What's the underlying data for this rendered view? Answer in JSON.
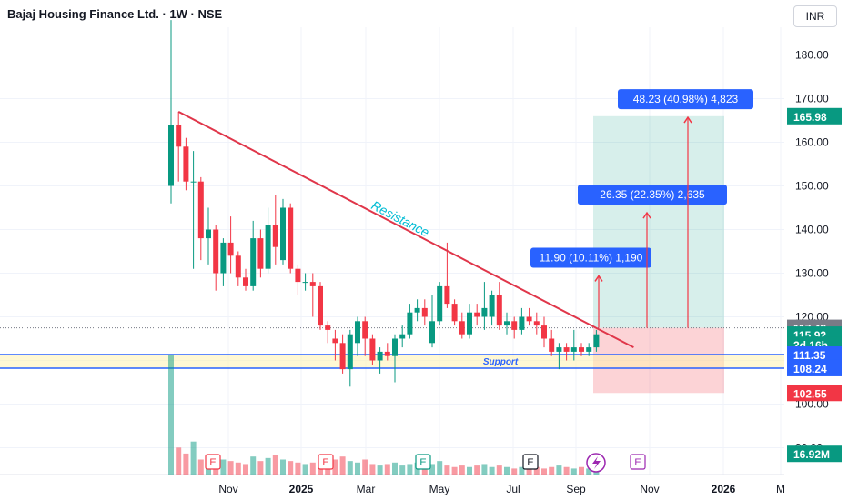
{
  "header": {
    "title": "Bajaj Housing Finance Ltd. · 1W · NSE",
    "currency": "INR"
  },
  "chart_data": {
    "type": "candlestick",
    "y_axis": {
      "ticks": [
        90,
        100,
        110,
        120,
        130,
        140,
        150,
        160,
        170,
        180
      ],
      "labels": [
        "90.00",
        "100.00",
        "",
        "120.00",
        "130.00",
        "140.00",
        "150.00",
        "160.00",
        "170.00",
        "180.00"
      ]
    },
    "x_axis": {
      "labels": [
        "Nov",
        "2025",
        "Mar",
        "May",
        "Jul",
        "Sep",
        "Nov",
        "2026",
        "M"
      ]
    },
    "candles": [
      {
        "o": 150,
        "h": 188,
        "l": 146,
        "c": 164
      },
      {
        "o": 164,
        "h": 167,
        "l": 151,
        "c": 159
      },
      {
        "o": 159,
        "h": 161,
        "l": 149,
        "c": 151
      },
      {
        "o": 151,
        "h": 158,
        "l": 131,
        "c": 151
      },
      {
        "o": 151,
        "h": 152,
        "l": 133,
        "c": 138
      },
      {
        "o": 138,
        "h": 145,
        "l": 132,
        "c": 140
      },
      {
        "o": 140,
        "h": 141,
        "l": 126,
        "c": 130
      },
      {
        "o": 130,
        "h": 138,
        "l": 127,
        "c": 137
      },
      {
        "o": 137,
        "h": 143,
        "l": 130,
        "c": 134
      },
      {
        "o": 134,
        "h": 135,
        "l": 127,
        "c": 129
      },
      {
        "o": 129,
        "h": 131,
        "l": 126,
        "c": 127
      },
      {
        "o": 127,
        "h": 142,
        "l": 126,
        "c": 138
      },
      {
        "o": 138,
        "h": 140,
        "l": 129,
        "c": 131
      },
      {
        "o": 131,
        "h": 145,
        "l": 130,
        "c": 141
      },
      {
        "o": 141,
        "h": 148,
        "l": 132,
        "c": 136
      },
      {
        "o": 133,
        "h": 147,
        "l": 132,
        "c": 145
      },
      {
        "o": 145,
        "h": 146,
        "l": 130,
        "c": 131
      },
      {
        "o": 131,
        "h": 132,
        "l": 125,
        "c": 128
      },
      {
        "o": 128,
        "h": 130,
        "l": 126,
        "c": 128
      },
      {
        "o": 128,
        "h": 130,
        "l": 120,
        "c": 127
      },
      {
        "o": 127,
        "h": 128,
        "l": 117,
        "c": 118
      },
      {
        "o": 118,
        "h": 119,
        "l": 114,
        "c": 117
      },
      {
        "o": 115,
        "h": 117,
        "l": 110,
        "c": 114
      },
      {
        "o": 114,
        "h": 116,
        "l": 107,
        "c": 108
      },
      {
        "o": 108,
        "h": 117,
        "l": 104,
        "c": 116
      },
      {
        "o": 114,
        "h": 120,
        "l": 111,
        "c": 119
      },
      {
        "o": 119,
        "h": 120,
        "l": 111,
        "c": 115
      },
      {
        "o": 115,
        "h": 116,
        "l": 109,
        "c": 110
      },
      {
        "o": 110,
        "h": 113,
        "l": 107,
        "c": 112
      },
      {
        "o": 112,
        "h": 114,
        "l": 110,
        "c": 111
      },
      {
        "o": 111,
        "h": 116,
        "l": 105,
        "c": 115
      },
      {
        "o": 115,
        "h": 118,
        "l": 113,
        "c": 116
      },
      {
        "o": 116,
        "h": 123,
        "l": 115,
        "c": 121
      },
      {
        "o": 121,
        "h": 124,
        "l": 119,
        "c": 122
      },
      {
        "o": 122,
        "h": 124,
        "l": 118,
        "c": 120
      },
      {
        "o": 114,
        "h": 125,
        "l": 113,
        "c": 119
      },
      {
        "o": 119,
        "h": 128,
        "l": 118,
        "c": 127
      },
      {
        "o": 127,
        "h": 137,
        "l": 122,
        "c": 123
      },
      {
        "o": 123,
        "h": 124,
        "l": 118,
        "c": 119
      },
      {
        "o": 119,
        "h": 121,
        "l": 115,
        "c": 116
      },
      {
        "o": 116,
        "h": 123,
        "l": 115,
        "c": 121
      },
      {
        "o": 121,
        "h": 123,
        "l": 118,
        "c": 120
      },
      {
        "o": 120,
        "h": 128,
        "l": 117,
        "c": 122
      },
      {
        "o": 120,
        "h": 126,
        "l": 118,
        "c": 125
      },
      {
        "o": 125,
        "h": 128,
        "l": 117,
        "c": 118
      },
      {
        "o": 118,
        "h": 121,
        "l": 116,
        "c": 119
      },
      {
        "o": 119,
        "h": 120,
        "l": 115,
        "c": 117
      },
      {
        "o": 117,
        "h": 122,
        "l": 116,
        "c": 120
      },
      {
        "o": 120,
        "h": 122,
        "l": 118,
        "c": 119
      },
      {
        "o": 119,
        "h": 121,
        "l": 116,
        "c": 118
      },
      {
        "o": 118,
        "h": 120,
        "l": 113,
        "c": 115
      },
      {
        "o": 115,
        "h": 117,
        "l": 111,
        "c": 112
      },
      {
        "o": 112,
        "h": 114,
        "l": 108,
        "c": 113
      },
      {
        "o": 113,
        "h": 114,
        "l": 110,
        "c": 112
      },
      {
        "o": 112,
        "h": 117,
        "l": 110,
        "c": 113
      },
      {
        "o": 113,
        "h": 114,
        "l": 111,
        "c": 112
      },
      {
        "o": 112,
        "h": 114,
        "l": 111,
        "c": 113
      },
      {
        "o": 113,
        "h": 117,
        "l": 112,
        "c": 116
      }
    ],
    "volume": [
      80,
      18,
      14,
      22,
      10,
      12,
      8,
      10,
      9,
      8,
      7,
      12,
      9,
      11,
      13,
      10,
      9,
      8,
      7,
      8,
      9,
      11,
      10,
      12,
      9,
      8,
      10,
      7,
      6,
      7,
      8,
      6,
      7,
      8,
      6,
      7,
      9,
      6,
      5,
      6,
      5,
      6,
      7,
      5,
      6,
      5,
      4,
      5,
      4,
      5,
      4,
      5,
      6,
      5,
      4,
      5,
      4,
      6
    ],
    "resistance": {
      "label": "Resistance",
      "from": [
        1,
        167
      ],
      "to": [
        62,
        113
      ]
    },
    "support": {
      "label": "Support",
      "upper": 111.35,
      "lower": 108.24
    },
    "position": {
      "entry": 117.48,
      "target": 165.98,
      "stop": 102.55
    },
    "targets": [
      {
        "price": 129.38,
        "label": "11.90 (10.11%) 1,190"
      },
      {
        "price": 143.83,
        "label": "26.35 (22.35%) 2,635"
      },
      {
        "price": 165.71,
        "label": "48.23 (40.98%) 4,823"
      }
    ],
    "price_tags": [
      {
        "label": "165.98",
        "price": 165.98,
        "color": "#089981"
      },
      {
        "label": "117.48",
        "price": 117.48,
        "color": "#787b86"
      },
      {
        "label": "115.92",
        "price": 115.92,
        "color": "#089981"
      },
      {
        "label": "2d 16h",
        "price": 113.6,
        "color": "#089981"
      },
      {
        "label": "111.35",
        "price": 111.35,
        "color": "#2962ff"
      },
      {
        "label": "108.24",
        "price": 108.24,
        "color": "#2962ff"
      },
      {
        "label": "102.55",
        "price": 102.55,
        "color": "#f23645"
      },
      {
        "label": "16.92M",
        "price": 88.6,
        "color": "#089981"
      }
    ],
    "earnings_markers": [
      "E",
      "E",
      "E",
      "E",
      "E"
    ],
    "colors": {
      "up": "#089981",
      "down": "#f23645",
      "resistance": "#e0364a",
      "support": "#2962ff",
      "label": "#2962ff"
    }
  }
}
